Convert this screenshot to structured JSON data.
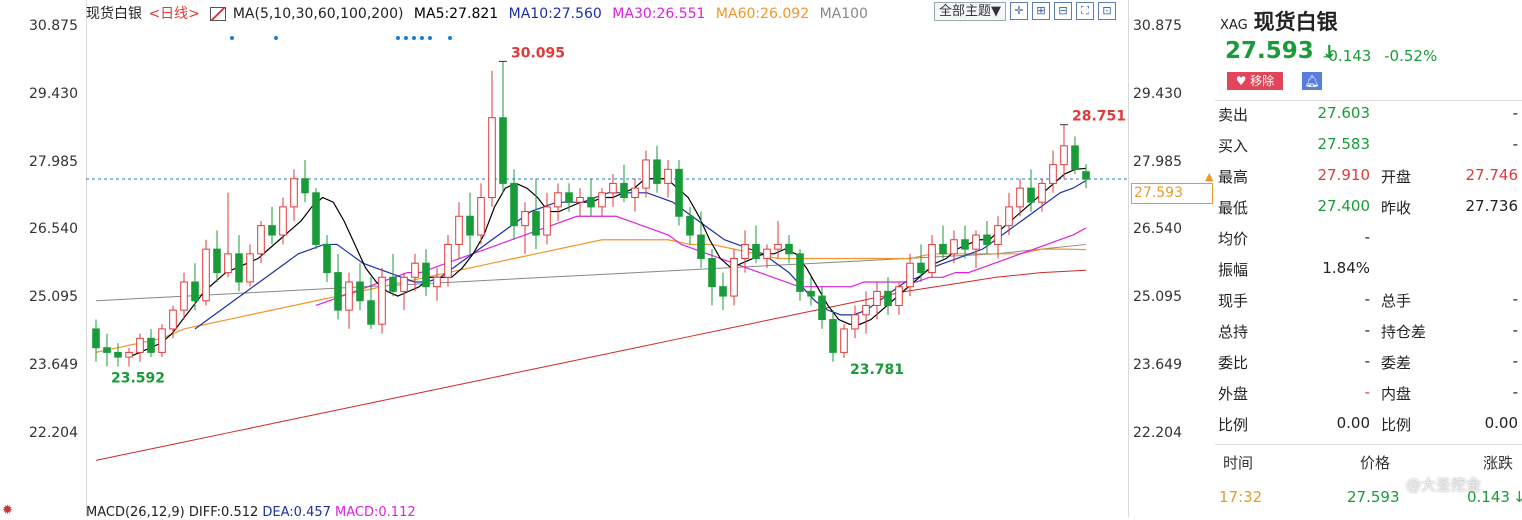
{
  "chart_header": {
    "name": "现货白银",
    "period": "<日线>",
    "ma_label": "MA(5,10,30,60,100,200)",
    "ma5": "MA5:27.821",
    "ma10": "MA10:27.560",
    "ma30": "MA30:26.551",
    "ma60": "MA60:26.092",
    "ma100": "MA100",
    "theme_button": "全部主题▼"
  },
  "macd_bar": {
    "label": "MACD(26,12,9)",
    "diff": "DIFF:0.512",
    "dea": "DEA:0.457",
    "macd": "MACD:0.112"
  },
  "axis": {
    "ticks": [
      "30.875",
      "29.430",
      "27.985",
      "26.540",
      "25.095",
      "23.649",
      "22.204"
    ],
    "current_price": "27.593"
  },
  "annotations": {
    "high": "30.095",
    "recent_high": "28.751",
    "low1": "23.592",
    "low2": "23.781"
  },
  "colors": {
    "up": "#e03a3a",
    "down": "#1a9b3a",
    "ma5": "#000000",
    "ma10": "#1c2fa8",
    "ma30": "#e020e0",
    "ma60": "#f0962a",
    "ma100": "#888888",
    "ma200": "#d02a2a"
  },
  "chart_data": {
    "type": "candlestick",
    "ylim": [
      21.5,
      31.5
    ],
    "ohlc": [
      [
        24.4,
        24.6,
        23.7,
        24.0
      ],
      [
        24.0,
        24.3,
        23.6,
        23.9
      ],
      [
        23.9,
        24.1,
        23.6,
        23.8
      ],
      [
        23.8,
        24.0,
        23.6,
        23.9
      ],
      [
        23.9,
        24.3,
        23.7,
        24.2
      ],
      [
        24.2,
        24.4,
        23.8,
        23.9
      ],
      [
        23.9,
        24.5,
        23.8,
        24.4
      ],
      [
        24.4,
        24.9,
        24.2,
        24.8
      ],
      [
        24.8,
        25.6,
        24.6,
        25.4
      ],
      [
        25.4,
        25.8,
        24.8,
        25.0
      ],
      [
        25.0,
        26.3,
        24.9,
        26.1
      ],
      [
        26.1,
        26.5,
        25.4,
        25.6
      ],
      [
        25.6,
        27.3,
        25.5,
        26.0
      ],
      [
        26.0,
        26.4,
        25.2,
        25.4
      ],
      [
        25.4,
        26.2,
        25.3,
        26.0
      ],
      [
        26.0,
        26.7,
        25.8,
        26.6
      ],
      [
        26.6,
        27.0,
        26.2,
        26.4
      ],
      [
        26.4,
        27.2,
        26.2,
        27.0
      ],
      [
        27.0,
        27.8,
        26.7,
        27.6
      ],
      [
        27.6,
        28.0,
        27.1,
        27.3
      ],
      [
        27.3,
        27.4,
        26.1,
        26.2
      ],
      [
        26.2,
        26.4,
        25.4,
        25.6
      ],
      [
        25.6,
        26.0,
        24.6,
        24.8
      ],
      [
        24.8,
        25.6,
        24.4,
        25.4
      ],
      [
        25.4,
        25.8,
        24.8,
        25.0
      ],
      [
        25.0,
        25.5,
        24.4,
        24.5
      ],
      [
        24.5,
        25.7,
        24.3,
        25.5
      ],
      [
        25.5,
        26.0,
        25.1,
        25.2
      ],
      [
        25.2,
        25.6,
        24.8,
        25.5
      ],
      [
        25.5,
        26.0,
        25.2,
        25.8
      ],
      [
        25.8,
        26.1,
        25.1,
        25.3
      ],
      [
        25.3,
        25.7,
        25.0,
        25.5
      ],
      [
        25.5,
        26.4,
        25.3,
        26.2
      ],
      [
        26.2,
        27.1,
        25.9,
        26.8
      ],
      [
        26.8,
        27.3,
        26.0,
        26.4
      ],
      [
        26.4,
        27.5,
        26.2,
        27.2
      ],
      [
        27.2,
        29.9,
        27.0,
        28.9
      ],
      [
        28.9,
        30.1,
        27.3,
        27.5
      ],
      [
        27.5,
        27.8,
        26.3,
        26.6
      ],
      [
        26.6,
        27.1,
        26.0,
        26.9
      ],
      [
        26.9,
        27.6,
        26.1,
        26.4
      ],
      [
        26.4,
        27.3,
        26.2,
        27.0
      ],
      [
        27.0,
        27.5,
        26.7,
        27.3
      ],
      [
        27.3,
        27.5,
        26.9,
        27.1
      ],
      [
        27.1,
        27.4,
        26.8,
        27.2
      ],
      [
        27.2,
        27.6,
        26.8,
        27.0
      ],
      [
        27.0,
        27.4,
        26.8,
        27.3
      ],
      [
        27.3,
        27.7,
        27.0,
        27.5
      ],
      [
        27.5,
        27.9,
        27.1,
        27.2
      ],
      [
        27.2,
        27.6,
        26.9,
        27.4
      ],
      [
        27.4,
        28.2,
        27.2,
        28.0
      ],
      [
        28.0,
        28.3,
        27.3,
        27.5
      ],
      [
        27.5,
        28.0,
        27.2,
        27.8
      ],
      [
        27.8,
        28.0,
        26.6,
        26.8
      ],
      [
        26.8,
        27.0,
        26.2,
        26.4
      ],
      [
        26.4,
        26.9,
        25.7,
        25.9
      ],
      [
        25.9,
        26.1,
        24.9,
        25.3
      ],
      [
        25.3,
        25.6,
        24.8,
        25.1
      ],
      [
        25.1,
        26.1,
        24.9,
        25.9
      ],
      [
        25.9,
        26.5,
        25.6,
        26.2
      ],
      [
        26.2,
        26.6,
        25.8,
        25.9
      ],
      [
        25.9,
        26.2,
        25.7,
        26.1
      ],
      [
        26.1,
        26.7,
        25.9,
        26.2
      ],
      [
        26.2,
        26.4,
        25.8,
        26.0
      ],
      [
        26.0,
        26.1,
        25.0,
        25.2
      ],
      [
        25.2,
        25.5,
        24.9,
        25.1
      ],
      [
        25.1,
        25.3,
        24.4,
        24.6
      ],
      [
        24.6,
        24.8,
        23.7,
        23.9
      ],
      [
        23.9,
        24.5,
        23.78,
        24.4
      ],
      [
        24.4,
        24.9,
        24.2,
        24.7
      ],
      [
        24.7,
        25.2,
        24.3,
        24.9
      ],
      [
        24.9,
        25.4,
        24.6,
        25.2
      ],
      [
        25.2,
        25.5,
        24.7,
        24.9
      ],
      [
        24.9,
        25.4,
        24.7,
        25.3
      ],
      [
        25.3,
        26.0,
        25.1,
        25.8
      ],
      [
        25.8,
        26.2,
        25.4,
        25.6
      ],
      [
        25.6,
        26.4,
        25.5,
        26.2
      ],
      [
        26.2,
        26.6,
        25.9,
        26.0
      ],
      [
        26.0,
        26.5,
        25.8,
        26.3
      ],
      [
        26.3,
        26.6,
        25.9,
        26.1
      ],
      [
        26.1,
        26.5,
        25.7,
        26.4
      ],
      [
        26.4,
        26.7,
        26.0,
        26.2
      ],
      [
        26.2,
        26.8,
        25.9,
        26.6
      ],
      [
        26.6,
        27.3,
        26.4,
        27.0
      ],
      [
        27.0,
        27.6,
        26.8,
        27.4
      ],
      [
        27.4,
        27.8,
        26.9,
        27.1
      ],
      [
        27.1,
        27.6,
        26.9,
        27.5
      ],
      [
        27.5,
        28.2,
        27.3,
        27.9
      ],
      [
        27.9,
        28.751,
        27.6,
        28.3
      ],
      [
        28.3,
        28.5,
        27.7,
        27.8
      ],
      [
        27.75,
        27.91,
        27.4,
        27.59
      ]
    ],
    "ma": {
      "ma5": {
        "start": 3,
        "values": [
          23.8,
          23.9,
          24.0,
          24.1,
          24.3,
          24.6,
          24.9,
          25.2,
          25.4,
          25.6,
          25.7,
          25.8,
          25.9,
          26.1,
          26.3,
          26.5,
          26.7,
          27.0,
          27.2,
          27.1,
          26.7,
          26.2,
          25.7,
          25.4,
          25.2,
          25.1,
          25.2,
          25.3,
          25.5,
          25.5,
          25.5,
          25.7,
          26.0,
          26.4,
          27.0,
          27.4,
          27.5,
          27.4,
          27.2,
          26.9,
          26.9,
          27.0,
          27.1,
          27.1,
          27.2,
          27.2,
          27.3,
          27.4,
          27.6,
          27.6,
          27.6,
          27.4,
          27.2,
          26.8,
          26.3,
          25.9,
          25.7,
          25.8,
          25.9,
          26.0,
          26.0,
          26.1,
          26.0,
          25.7,
          25.3,
          24.9,
          24.6,
          24.5,
          24.5,
          24.6,
          24.8,
          25.0,
          25.2,
          25.4,
          25.6,
          25.8,
          25.9,
          26.1,
          26.2,
          26.3,
          26.3,
          26.5,
          26.7,
          26.9,
          27.1,
          27.3,
          27.5,
          27.7,
          27.8,
          27.82
        ]
      },
      "ma10": {
        "start": 9,
        "values": [
          24.4,
          24.6,
          24.8,
          25.0,
          25.2,
          25.4,
          25.6,
          25.8,
          26.0,
          26.1,
          26.2,
          26.2,
          26.0,
          25.8,
          25.7,
          25.6,
          25.5,
          25.4,
          25.4,
          25.5,
          25.7,
          25.9,
          26.1,
          26.3,
          26.5,
          26.7,
          26.9,
          27.0,
          27.1,
          27.1,
          27.1,
          27.2,
          27.3,
          27.3,
          27.3,
          27.3,
          27.2,
          27.1,
          26.9,
          26.7,
          26.5,
          26.3,
          26.2,
          26.1,
          26.0,
          25.8,
          25.6,
          25.3,
          25.0,
          24.8,
          24.7,
          24.7,
          24.8,
          25.0,
          25.2,
          25.4,
          25.5,
          25.7,
          25.8,
          25.9,
          26.0,
          26.1,
          26.3,
          26.5,
          26.7,
          26.9,
          27.1,
          27.3,
          27.4,
          27.56
        ]
      },
      "ma30": {
        "start": 20,
        "values": [
          24.9,
          25.0,
          25.1,
          25.2,
          25.3,
          25.4,
          25.5,
          25.6,
          25.6,
          25.7,
          25.8,
          25.9,
          26.0,
          26.1,
          26.2,
          26.3,
          26.4,
          26.5,
          26.6,
          26.7,
          26.8,
          26.8,
          26.8,
          26.8,
          26.7,
          26.6,
          26.5,
          26.4,
          26.2,
          26.1,
          26.0,
          25.9,
          25.8,
          25.7,
          25.6,
          25.5,
          25.4,
          25.3,
          25.3,
          25.3,
          25.3,
          25.3,
          25.4,
          25.4,
          25.4,
          25.4,
          25.4,
          25.5,
          25.5,
          25.6,
          25.6,
          25.7,
          25.8,
          25.9,
          26.0,
          26.1,
          26.2,
          26.3,
          26.4,
          26.55
        ]
      },
      "ma60": {
        "start": 0,
        "values": [
          23.9,
          24.0,
          24.1,
          24.2,
          24.4,
          24.5,
          24.6,
          24.7,
          24.8,
          24.9,
          25.0,
          25.1,
          25.2,
          25.3,
          25.4,
          25.5,
          25.6,
          25.7,
          25.8,
          25.9,
          26.0,
          26.1,
          26.2,
          26.3,
          26.3,
          26.3,
          26.3,
          26.2,
          26.2,
          26.1,
          26.0,
          25.9,
          25.9,
          25.9,
          25.9,
          25.9,
          25.9,
          25.9,
          26.0,
          26.0,
          26.0,
          26.0,
          26.0,
          26.1,
          26.1,
          26.09
        ]
      },
      "ma100": {
        "start": 0,
        "values": [
          25.0,
          25.05,
          25.1,
          25.15,
          25.2,
          25.25,
          25.3,
          25.35,
          25.4,
          25.45,
          25.5,
          25.55,
          25.6,
          25.65,
          25.7,
          25.75,
          25.8,
          25.85,
          25.9,
          25.95,
          26.0,
          26.1,
          26.2
        ]
      },
      "ma200": {
        "start": 0,
        "values": [
          21.6,
          21.8,
          22.0,
          22.2,
          22.4,
          22.6,
          22.8,
          23.0,
          23.2,
          23.4,
          23.6,
          23.8,
          24.0,
          24.2,
          24.4,
          24.6,
          24.8,
          25.0,
          25.2,
          25.35,
          25.5,
          25.6,
          25.65
        ]
      }
    }
  },
  "quote": {
    "code": "XAG",
    "name": "现货白银",
    "price": "27.593",
    "arrow": "↓",
    "change": "-0.143",
    "change_pct": "-0.52%",
    "remove_label": "移除",
    "rows": [
      {
        "l1": "卖出",
        "v1": "27.603",
        "c1": "green",
        "l2": "",
        "v2": "-",
        "c2": ""
      },
      {
        "l1": "买入",
        "v1": "27.583",
        "c1": "green",
        "l2": "",
        "v2": "-",
        "c2": ""
      },
      {
        "l1": "最高",
        "v1": "27.910",
        "c1": "red",
        "l2": "开盘",
        "v2": "27.746",
        "c2": "red"
      },
      {
        "l1": "最低",
        "v1": "27.400",
        "c1": "green",
        "l2": "昨收",
        "v2": "27.736",
        "c2": ""
      },
      {
        "l1": "均价",
        "v1": "-",
        "c1": "",
        "l2": "",
        "v2": "",
        "c2": ""
      },
      {
        "l1": "振幅",
        "v1": "1.84%",
        "c1": "",
        "l2": "",
        "v2": "",
        "c2": ""
      },
      {
        "l1": "现手",
        "v1": "-",
        "c1": "",
        "l2": "总手",
        "v2": "-",
        "c2": ""
      },
      {
        "l1": "总持",
        "v1": "-",
        "c1": "",
        "l2": "持仓差",
        "v2": "-",
        "c2": ""
      },
      {
        "l1": "委比",
        "v1": "-",
        "c1": "",
        "l2": "委差",
        "v2": "-",
        "c2": ""
      },
      {
        "l1": "外盘",
        "v1": "-",
        "c1": "red",
        "l2": "内盘",
        "v2": "-",
        "c2": ""
      },
      {
        "l1": "比例",
        "v1": "0.00",
        "c1": "",
        "l2": "比例",
        "v2": "0.00",
        "c2": ""
      }
    ],
    "trade_headers": [
      "时间",
      "价格",
      "涨跌"
    ],
    "trade": {
      "time": "17:32",
      "price": "27.593",
      "change": "0.143",
      "arrow": "↓"
    }
  },
  "watermark": "@大圣挖金"
}
